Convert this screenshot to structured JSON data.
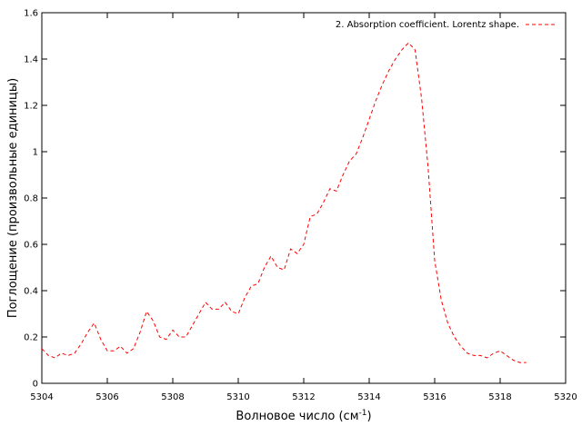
{
  "chart_data": {
    "type": "line",
    "xlabel_main": "Волновое число (см",
    "xlabel_sup": "-1",
    "xlabel_tail": ")",
    "ylabel": "Поглощение (произвольные единицы)",
    "xlim": [
      5304,
      5320
    ],
    "ylim": [
      0,
      1.6
    ],
    "xticks": [
      5304,
      5306,
      5308,
      5310,
      5312,
      5314,
      5316,
      5318,
      5320
    ],
    "yticks": [
      0,
      0.2,
      0.4,
      0.6,
      0.8,
      1,
      1.2,
      1.4,
      1.6
    ],
    "grid": false,
    "legend_position": "top-right",
    "series": [
      {
        "name": "2. Absorption coefficient. Lorentz shape.",
        "color": "#ff0000",
        "dash": "dashed",
        "x": [
          5304.0,
          5304.2,
          5304.4,
          5304.6,
          5304.8,
          5305.0,
          5305.2,
          5305.4,
          5305.6,
          5305.8,
          5306.0,
          5306.2,
          5306.4,
          5306.6,
          5306.8,
          5307.0,
          5307.2,
          5307.4,
          5307.6,
          5307.8,
          5308.0,
          5308.2,
          5308.4,
          5308.6,
          5308.8,
          5309.0,
          5309.2,
          5309.4,
          5309.6,
          5309.8,
          5310.0,
          5310.2,
          5310.4,
          5310.6,
          5310.8,
          5311.0,
          5311.2,
          5311.4,
          5311.6,
          5311.8,
          5312.0,
          5312.2,
          5312.4,
          5312.6,
          5312.8,
          5313.0,
          5313.2,
          5313.4,
          5313.6,
          5313.8,
          5314.0,
          5314.2,
          5314.4,
          5314.6,
          5314.8,
          5315.0,
          5315.2,
          5315.4,
          5315.6,
          5315.8,
          5316.0,
          5316.2,
          5316.4,
          5316.6,
          5316.8,
          5317.0,
          5317.2,
          5317.4,
          5317.6,
          5317.8,
          5318.0,
          5318.2,
          5318.4,
          5318.6,
          5318.8
        ],
        "y": [
          0.15,
          0.12,
          0.11,
          0.13,
          0.12,
          0.13,
          0.17,
          0.22,
          0.26,
          0.19,
          0.14,
          0.14,
          0.16,
          0.13,
          0.15,
          0.22,
          0.31,
          0.27,
          0.2,
          0.19,
          0.23,
          0.2,
          0.2,
          0.25,
          0.3,
          0.35,
          0.32,
          0.32,
          0.35,
          0.31,
          0.3,
          0.37,
          0.42,
          0.43,
          0.5,
          0.55,
          0.5,
          0.49,
          0.58,
          0.56,
          0.6,
          0.72,
          0.73,
          0.78,
          0.84,
          0.83,
          0.9,
          0.96,
          0.99,
          1.06,
          1.14,
          1.22,
          1.29,
          1.35,
          1.4,
          1.44,
          1.47,
          1.44,
          1.23,
          0.93,
          0.53,
          0.36,
          0.26,
          0.2,
          0.16,
          0.13,
          0.12,
          0.12,
          0.11,
          0.13,
          0.14,
          0.12,
          0.1,
          0.09,
          0.09
        ]
      }
    ]
  }
}
